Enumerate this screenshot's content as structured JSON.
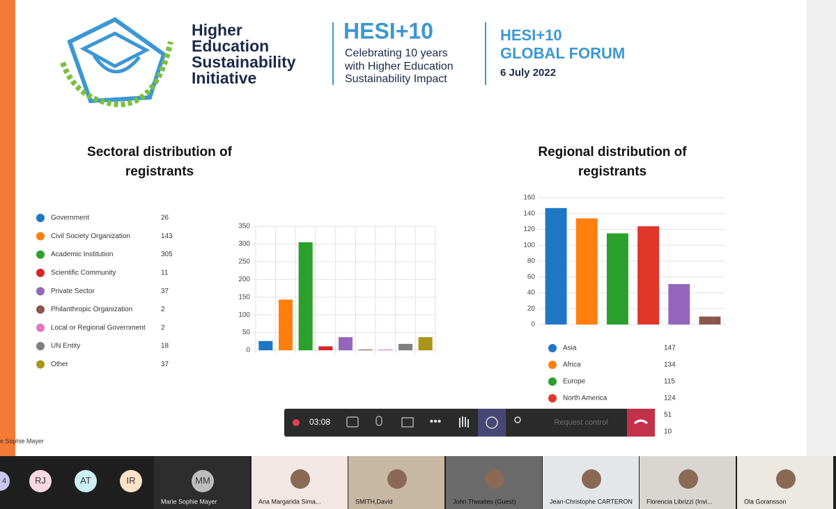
{
  "header": {
    "logo_title": [
      "Higher",
      "Education",
      "Sustainability",
      "Initiative"
    ],
    "event": "HESI+10",
    "tagline": [
      "Celebrating 10 years",
      "with Higher Education",
      "Sustainability Impact"
    ],
    "forum": [
      "HESI+10",
      "GLOBAL FORUM"
    ],
    "date": "6 July 2022"
  },
  "chart_data": [
    {
      "type": "bar",
      "title": [
        "Sectoral distribution of",
        "registrants"
      ],
      "categories": [
        "Government",
        "Civil Society Organization",
        "Academic Institution",
        "Scientific Community",
        "Private Sector",
        "Philanthropic Organization",
        "Local or Regional Government",
        "UN Entity",
        "Other"
      ],
      "values": [
        26,
        143,
        305,
        11,
        37,
        2,
        2,
        18,
        37
      ],
      "colors": [
        "#1f77c4",
        "#ff7f0e",
        "#2ca02c",
        "#d62728",
        "#9467bd",
        "#8c564b",
        "#e377c2",
        "#7f7f7f",
        "#a8951a"
      ],
      "ylim": [
        0,
        350
      ],
      "yticks": [
        0,
        50,
        100,
        150,
        200,
        250,
        300,
        350
      ],
      "grid": true
    },
    {
      "type": "bar",
      "title": [
        "Regional distribution of",
        "registrants"
      ],
      "categories": [
        "Asia",
        "Africa",
        "Europe",
        "North America",
        null,
        null
      ],
      "values": [
        147,
        134,
        115,
        124,
        51,
        10
      ],
      "colors": [
        "#1f77c4",
        "#ff7f0e",
        "#2ca02c",
        "#e0372a",
        "#9467bd",
        "#8c564b"
      ],
      "ylim": [
        0,
        160
      ],
      "yticks": [
        0,
        20,
        40,
        60,
        80,
        100,
        120,
        140,
        160
      ],
      "grid": true
    }
  ],
  "toolbar": {
    "timer": "03:08",
    "request": "Request control"
  },
  "participants": {
    "caption": "e Sophie Mayer",
    "count": "4",
    "avatars": [
      "RJ",
      "AT",
      "IR"
    ],
    "tiles": [
      {
        "initials": "MM",
        "name": "Marie Sophie Mayer"
      },
      {
        "name": "Ana Margarida Sima..."
      },
      {
        "name": "SMITH,David"
      },
      {
        "name": "John Thwaites (Guest)"
      },
      {
        "name": "Jean-Christophe CARTERON"
      },
      {
        "name": "Florencia Librizzi (Invi..."
      },
      {
        "name": "Ola Goransson"
      }
    ]
  }
}
